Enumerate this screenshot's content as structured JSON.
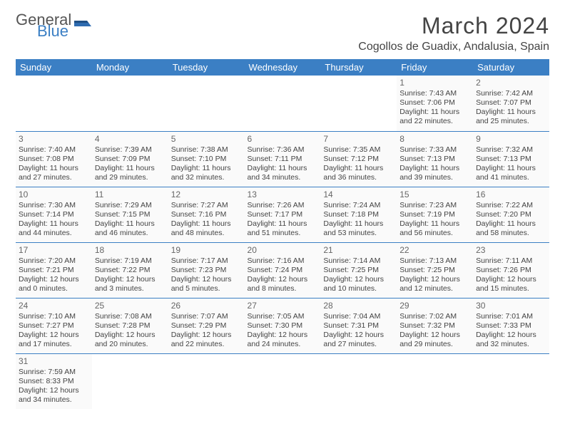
{
  "logo": {
    "line1": "General",
    "line2": "Blue"
  },
  "title": "March 2024",
  "location": "Cogollos de Guadix, Andalusia, Spain",
  "dayHeaders": [
    "Sunday",
    "Monday",
    "Tuesday",
    "Wednesday",
    "Thursday",
    "Friday",
    "Saturday"
  ],
  "colors": {
    "headerBg": "#3b7fc4",
    "headerText": "#ffffff",
    "border": "#3b7fc4"
  },
  "weeks": [
    [
      null,
      null,
      null,
      null,
      null,
      {
        "n": "1",
        "sr": "Sunrise: 7:43 AM",
        "ss": "Sunset: 7:06 PM",
        "d1": "Daylight: 11 hours",
        "d2": "and 22 minutes."
      },
      {
        "n": "2",
        "sr": "Sunrise: 7:42 AM",
        "ss": "Sunset: 7:07 PM",
        "d1": "Daylight: 11 hours",
        "d2": "and 25 minutes."
      }
    ],
    [
      {
        "n": "3",
        "sr": "Sunrise: 7:40 AM",
        "ss": "Sunset: 7:08 PM",
        "d1": "Daylight: 11 hours",
        "d2": "and 27 minutes."
      },
      {
        "n": "4",
        "sr": "Sunrise: 7:39 AM",
        "ss": "Sunset: 7:09 PM",
        "d1": "Daylight: 11 hours",
        "d2": "and 29 minutes."
      },
      {
        "n": "5",
        "sr": "Sunrise: 7:38 AM",
        "ss": "Sunset: 7:10 PM",
        "d1": "Daylight: 11 hours",
        "d2": "and 32 minutes."
      },
      {
        "n": "6",
        "sr": "Sunrise: 7:36 AM",
        "ss": "Sunset: 7:11 PM",
        "d1": "Daylight: 11 hours",
        "d2": "and 34 minutes."
      },
      {
        "n": "7",
        "sr": "Sunrise: 7:35 AM",
        "ss": "Sunset: 7:12 PM",
        "d1": "Daylight: 11 hours",
        "d2": "and 36 minutes."
      },
      {
        "n": "8",
        "sr": "Sunrise: 7:33 AM",
        "ss": "Sunset: 7:13 PM",
        "d1": "Daylight: 11 hours",
        "d2": "and 39 minutes."
      },
      {
        "n": "9",
        "sr": "Sunrise: 7:32 AM",
        "ss": "Sunset: 7:13 PM",
        "d1": "Daylight: 11 hours",
        "d2": "and 41 minutes."
      }
    ],
    [
      {
        "n": "10",
        "sr": "Sunrise: 7:30 AM",
        "ss": "Sunset: 7:14 PM",
        "d1": "Daylight: 11 hours",
        "d2": "and 44 minutes."
      },
      {
        "n": "11",
        "sr": "Sunrise: 7:29 AM",
        "ss": "Sunset: 7:15 PM",
        "d1": "Daylight: 11 hours",
        "d2": "and 46 minutes."
      },
      {
        "n": "12",
        "sr": "Sunrise: 7:27 AM",
        "ss": "Sunset: 7:16 PM",
        "d1": "Daylight: 11 hours",
        "d2": "and 48 minutes."
      },
      {
        "n": "13",
        "sr": "Sunrise: 7:26 AM",
        "ss": "Sunset: 7:17 PM",
        "d1": "Daylight: 11 hours",
        "d2": "and 51 minutes."
      },
      {
        "n": "14",
        "sr": "Sunrise: 7:24 AM",
        "ss": "Sunset: 7:18 PM",
        "d1": "Daylight: 11 hours",
        "d2": "and 53 minutes."
      },
      {
        "n": "15",
        "sr": "Sunrise: 7:23 AM",
        "ss": "Sunset: 7:19 PM",
        "d1": "Daylight: 11 hours",
        "d2": "and 56 minutes."
      },
      {
        "n": "16",
        "sr": "Sunrise: 7:22 AM",
        "ss": "Sunset: 7:20 PM",
        "d1": "Daylight: 11 hours",
        "d2": "and 58 minutes."
      }
    ],
    [
      {
        "n": "17",
        "sr": "Sunrise: 7:20 AM",
        "ss": "Sunset: 7:21 PM",
        "d1": "Daylight: 12 hours",
        "d2": "and 0 minutes."
      },
      {
        "n": "18",
        "sr": "Sunrise: 7:19 AM",
        "ss": "Sunset: 7:22 PM",
        "d1": "Daylight: 12 hours",
        "d2": "and 3 minutes."
      },
      {
        "n": "19",
        "sr": "Sunrise: 7:17 AM",
        "ss": "Sunset: 7:23 PM",
        "d1": "Daylight: 12 hours",
        "d2": "and 5 minutes."
      },
      {
        "n": "20",
        "sr": "Sunrise: 7:16 AM",
        "ss": "Sunset: 7:24 PM",
        "d1": "Daylight: 12 hours",
        "d2": "and 8 minutes."
      },
      {
        "n": "21",
        "sr": "Sunrise: 7:14 AM",
        "ss": "Sunset: 7:25 PM",
        "d1": "Daylight: 12 hours",
        "d2": "and 10 minutes."
      },
      {
        "n": "22",
        "sr": "Sunrise: 7:13 AM",
        "ss": "Sunset: 7:25 PM",
        "d1": "Daylight: 12 hours",
        "d2": "and 12 minutes."
      },
      {
        "n": "23",
        "sr": "Sunrise: 7:11 AM",
        "ss": "Sunset: 7:26 PM",
        "d1": "Daylight: 12 hours",
        "d2": "and 15 minutes."
      }
    ],
    [
      {
        "n": "24",
        "sr": "Sunrise: 7:10 AM",
        "ss": "Sunset: 7:27 PM",
        "d1": "Daylight: 12 hours",
        "d2": "and 17 minutes."
      },
      {
        "n": "25",
        "sr": "Sunrise: 7:08 AM",
        "ss": "Sunset: 7:28 PM",
        "d1": "Daylight: 12 hours",
        "d2": "and 20 minutes."
      },
      {
        "n": "26",
        "sr": "Sunrise: 7:07 AM",
        "ss": "Sunset: 7:29 PM",
        "d1": "Daylight: 12 hours",
        "d2": "and 22 minutes."
      },
      {
        "n": "27",
        "sr": "Sunrise: 7:05 AM",
        "ss": "Sunset: 7:30 PM",
        "d1": "Daylight: 12 hours",
        "d2": "and 24 minutes."
      },
      {
        "n": "28",
        "sr": "Sunrise: 7:04 AM",
        "ss": "Sunset: 7:31 PM",
        "d1": "Daylight: 12 hours",
        "d2": "and 27 minutes."
      },
      {
        "n": "29",
        "sr": "Sunrise: 7:02 AM",
        "ss": "Sunset: 7:32 PM",
        "d1": "Daylight: 12 hours",
        "d2": "and 29 minutes."
      },
      {
        "n": "30",
        "sr": "Sunrise: 7:01 AM",
        "ss": "Sunset: 7:33 PM",
        "d1": "Daylight: 12 hours",
        "d2": "and 32 minutes."
      }
    ],
    [
      {
        "n": "31",
        "sr": "Sunrise: 7:59 AM",
        "ss": "Sunset: 8:33 PM",
        "d1": "Daylight: 12 hours",
        "d2": "and 34 minutes."
      },
      null,
      null,
      null,
      null,
      null,
      null
    ]
  ]
}
